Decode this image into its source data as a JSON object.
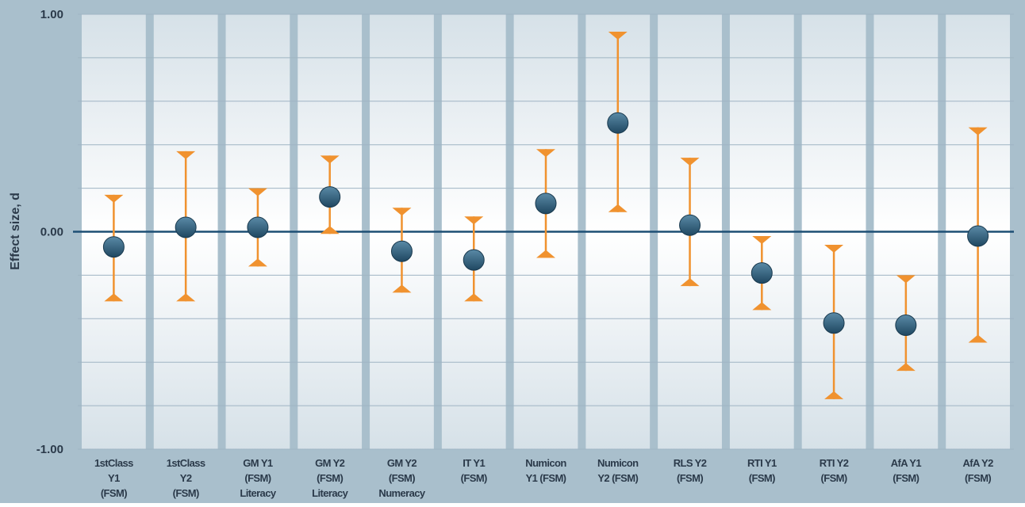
{
  "chart_data": {
    "type": "scatter",
    "ylabel": "Effect size, d",
    "ylim": [
      -1.0,
      1.0
    ],
    "y_ticks": [
      {
        "value": 1.0,
        "label": "1.00"
      },
      {
        "value": 0.0,
        "label": "0.00"
      },
      {
        "value": -1.0,
        "label": "-1.00"
      }
    ],
    "grid": true,
    "categories": [
      [
        "1stClass",
        "Y1",
        "(FSM)"
      ],
      [
        "1stClass",
        "Y2",
        "(FSM)"
      ],
      [
        "GM Y1",
        "(FSM)",
        "Literacy"
      ],
      [
        "GM Y2",
        "(FSM)",
        "Literacy"
      ],
      [
        "GM Y2",
        "(FSM)",
        "Numeracy"
      ],
      [
        "IT Y1",
        "(FSM)"
      ],
      [
        "Numicon",
        "Y1 (FSM)"
      ],
      [
        "Numicon",
        "Y2 (FSM)"
      ],
      [
        "RLS Y2",
        "(FSM)"
      ],
      [
        "RTI Y1",
        "(FSM)"
      ],
      [
        "RTI Y2",
        "(FSM)"
      ],
      [
        "AfA Y1",
        "(FSM)"
      ],
      [
        "AfA Y2",
        "(FSM)"
      ]
    ],
    "estimates": [
      -0.07,
      0.02,
      0.02,
      0.16,
      -0.09,
      -0.13,
      0.13,
      0.5,
      0.03,
      -0.19,
      -0.42,
      -0.43,
      -0.02
    ],
    "ci_lower": [
      -0.32,
      -0.32,
      -0.16,
      -0.01,
      -0.28,
      -0.32,
      -0.12,
      0.09,
      -0.25,
      -0.36,
      -0.77,
      -0.64,
      -0.51
    ],
    "ci_upper": [
      0.17,
      0.37,
      0.2,
      0.35,
      0.11,
      0.07,
      0.38,
      0.92,
      0.34,
      -0.02,
      -0.06,
      -0.2,
      0.48
    ],
    "colors": {
      "point": "#2e5872",
      "error_bar": "#f0922f",
      "zero_line": "#1d4f74",
      "background": "#a9bfcc",
      "panel_top": "#d6e1e8"
    }
  }
}
